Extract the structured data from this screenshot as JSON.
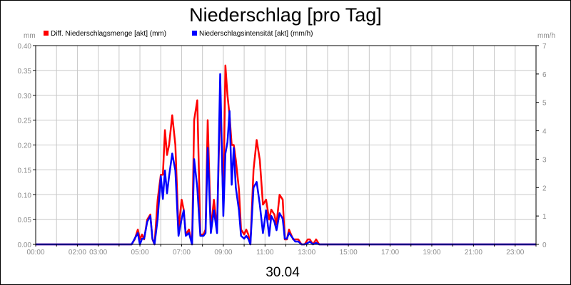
{
  "chart_data": {
    "type": "line",
    "title": "Niederschlag [pro Tag]",
    "date_label": "30.04",
    "left_unit": "mm",
    "right_unit": "mm/h",
    "grid": true,
    "legend_position": "top-left",
    "x_unit": "hour of day",
    "xlim": [
      0,
      24
    ],
    "ylim": [
      0,
      0.4
    ],
    "y2lim": [
      0,
      7
    ],
    "x_ticks": [
      {
        "value": 0,
        "label": "00:00"
      },
      {
        "value": 2,
        "label": "02:00"
      },
      {
        "value": 3,
        "label": "03:00"
      },
      {
        "value": 5,
        "label": "05:00"
      },
      {
        "value": 7,
        "label": "07:00"
      },
      {
        "value": 9,
        "label": "09:00"
      },
      {
        "value": 11,
        "label": "11:00"
      },
      {
        "value": 13,
        "label": "13:00"
      },
      {
        "value": 15,
        "label": "15:00"
      },
      {
        "value": 17,
        "label": "17:00"
      },
      {
        "value": 19,
        "label": "19:00"
      },
      {
        "value": 21,
        "label": "21:00"
      },
      {
        "value": 23,
        "label": "23:00"
      }
    ],
    "y_ticks": [
      "0.00",
      "0.05",
      "0.10",
      "0.15",
      "0.20",
      "0.25",
      "0.30",
      "0.35",
      "0.40"
    ],
    "y2_ticks": [
      "0",
      "1",
      "2",
      "3",
      "4",
      "5",
      "6",
      "7"
    ],
    "series": [
      {
        "name": "Diff. Niederschlagsmenge [akt] (mm)",
        "color": "#ff0000",
        "axis": "left",
        "x": [
          0,
          4.6,
          4.75,
          4.9,
          5.0,
          5.1,
          5.2,
          5.35,
          5.5,
          5.6,
          5.7,
          5.85,
          6.0,
          6.1,
          6.2,
          6.3,
          6.4,
          6.55,
          6.7,
          6.85,
          7.0,
          7.1,
          7.2,
          7.35,
          7.5,
          7.6,
          7.75,
          7.9,
          8.05,
          8.15,
          8.25,
          8.4,
          8.55,
          8.7,
          8.85,
          9.0,
          9.1,
          9.2,
          9.3,
          9.4,
          9.5,
          9.6,
          9.75,
          9.85,
          10.0,
          10.1,
          10.2,
          10.3,
          10.45,
          10.6,
          10.75,
          10.9,
          11.05,
          11.2,
          11.3,
          11.45,
          11.55,
          11.7,
          11.85,
          11.95,
          12.05,
          12.15,
          12.25,
          12.35,
          12.45,
          12.6,
          12.75,
          12.9,
          13.05,
          13.15,
          13.3,
          13.45,
          13.6,
          13.75,
          13.9,
          24
        ],
        "y": [
          0,
          0,
          0.01,
          0.03,
          0.01,
          0.02,
          0.01,
          0.05,
          0.06,
          0.01,
          0.0,
          0.09,
          0.14,
          0.14,
          0.23,
          0.18,
          0.2,
          0.26,
          0.2,
          0.03,
          0.09,
          0.07,
          0.02,
          0.03,
          0.0,
          0.25,
          0.29,
          0.02,
          0.02,
          0.03,
          0.25,
          0.03,
          0.09,
          0.03,
          0.3,
          0.08,
          0.36,
          0.3,
          0.26,
          0.2,
          0.2,
          0.17,
          0.11,
          0.03,
          0.02,
          0.03,
          0.02,
          0.0,
          0.15,
          0.21,
          0.17,
          0.08,
          0.09,
          0.05,
          0.07,
          0.06,
          0.04,
          0.1,
          0.09,
          0.01,
          0.01,
          0.03,
          0.02,
          0.01,
          0.01,
          0.01,
          0.0,
          0.0,
          0.01,
          0.01,
          0.0,
          0.01,
          0.0,
          0.0,
          0.0,
          0
        ]
      },
      {
        "name": "Niederschlagsintensität [akt] (mm/h)",
        "color": "#0000ff",
        "axis": "right",
        "x": [
          0,
          4.6,
          4.75,
          4.9,
          5.0,
          5.1,
          5.2,
          5.35,
          5.5,
          5.6,
          5.7,
          5.85,
          6.0,
          6.1,
          6.2,
          6.3,
          6.4,
          6.55,
          6.7,
          6.85,
          7.0,
          7.1,
          7.2,
          7.35,
          7.5,
          7.6,
          7.75,
          7.9,
          8.05,
          8.15,
          8.25,
          8.4,
          8.55,
          8.7,
          8.85,
          9.0,
          9.1,
          9.2,
          9.3,
          9.4,
          9.5,
          9.6,
          9.75,
          9.85,
          10.0,
          10.1,
          10.2,
          10.3,
          10.45,
          10.6,
          10.75,
          10.9,
          11.05,
          11.2,
          11.3,
          11.45,
          11.55,
          11.7,
          11.85,
          11.95,
          12.05,
          12.15,
          12.25,
          12.35,
          12.45,
          12.6,
          12.75,
          12.9,
          13.05,
          13.15,
          13.3,
          13.45,
          13.6,
          13.75,
          13.9,
          24
        ],
        "y": [
          0,
          0,
          0.2,
          0.4,
          0.0,
          0.2,
          0.2,
          0.8,
          1.0,
          0.2,
          0.0,
          0.9,
          2.4,
          1.6,
          2.6,
          1.8,
          2.4,
          3.2,
          2.6,
          0.3,
          0.9,
          1.2,
          0.3,
          0.4,
          0.0,
          3.0,
          2.0,
          0.3,
          0.3,
          0.4,
          3.4,
          0.4,
          1.2,
          0.4,
          6.0,
          1.0,
          3.2,
          3.6,
          4.7,
          2.1,
          3.4,
          2.0,
          1.2,
          0.3,
          0.2,
          0.3,
          0.2,
          0.0,
          2.0,
          2.2,
          1.4,
          0.4,
          1.2,
          0.3,
          1.0,
          0.8,
          0.5,
          1.1,
          0.9,
          0.2,
          0.2,
          0.4,
          0.3,
          0.2,
          0.1,
          0.1,
          0.0,
          0.0,
          0.05,
          0.1,
          0.0,
          0.05,
          0.0,
          0.0,
          0.0,
          0
        ]
      }
    ]
  }
}
